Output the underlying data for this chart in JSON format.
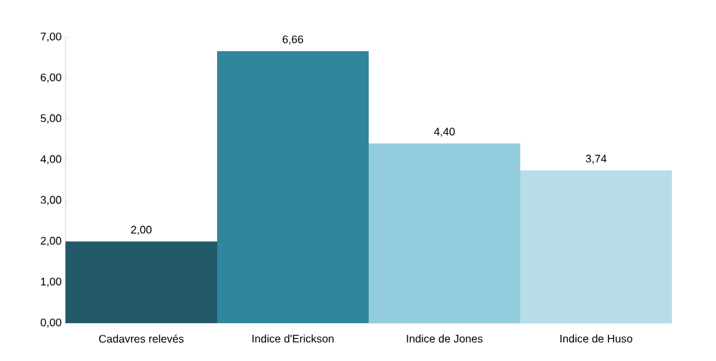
{
  "chart_data": {
    "type": "bar",
    "categories": [
      "Cadavres relevés",
      "Indice d'Erickson",
      "Indice de Jones",
      "Indice de Huso"
    ],
    "values": [
      2.0,
      6.66,
      4.4,
      3.74
    ],
    "colors": [
      "#215968",
      "#31859c",
      "#93cddd",
      "#b7dee8"
    ],
    "value_labels": [
      "2,00",
      "6,66",
      "4,40",
      "3,74"
    ],
    "ylim": [
      0,
      7
    ],
    "yticks": [
      {
        "value": 0,
        "label": "0,00"
      },
      {
        "value": 1,
        "label": "1,00"
      },
      {
        "value": 2,
        "label": "2,00"
      },
      {
        "value": 3,
        "label": "3,00"
      },
      {
        "value": 4,
        "label": "4,00"
      },
      {
        "value": 5,
        "label": "5,00"
      },
      {
        "value": 6,
        "label": "6,00"
      },
      {
        "value": 7,
        "label": "7,00"
      }
    ],
    "grid": false,
    "legend": false
  }
}
